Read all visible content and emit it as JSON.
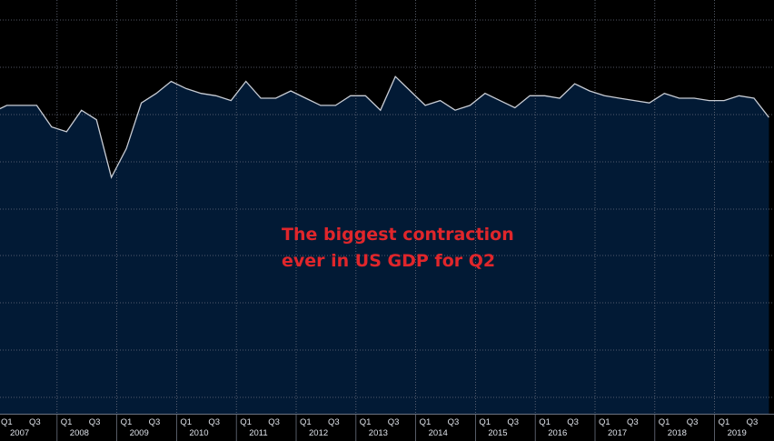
{
  "chart_data": {
    "type": "area",
    "title": "",
    "xlabel": "",
    "ylabel": "",
    "grid": true,
    "annotation": [
      "The biggest contraction",
      "ever in US GDP for Q2"
    ],
    "x_start": "2006 Q4",
    "x_end": "2020 Q1",
    "ylim": [
      -1.0,
      0.3
    ],
    "values": [
      0.5,
      0.8,
      0.8,
      0.8,
      -0.1,
      -0.3,
      0.6,
      0.2,
      -2.2,
      -1.0,
      0.9,
      1.3,
      1.8,
      1.5,
      1.3,
      1.2,
      1.0,
      1.8,
      1.1,
      1.1,
      1.4,
      1.1,
      0.8,
      0.8,
      1.2,
      1.2,
      0.6,
      2.0,
      1.4,
      0.8,
      1.0,
      0.6,
      0.8,
      1.3,
      1.0,
      0.7,
      1.2,
      1.2,
      1.1,
      1.7,
      1.4,
      1.2,
      1.1,
      1.0,
      0.9,
      1.3,
      1.1,
      1.1,
      1.0,
      1.0,
      1.2,
      1.1,
      0.3
    ],
    "x_tick_labels": [
      "Q1",
      "Q3"
    ],
    "years": [
      "2007",
      "2008",
      "2009",
      "2010",
      "2011",
      "2012",
      "2013",
      "2014",
      "2015",
      "2016",
      "2017",
      "2018",
      "2019"
    ],
    "colors": {
      "background": "#000000",
      "area_fill": "#021a35",
      "line": "#c8ccd4",
      "grid": "#6b7280",
      "axis_text": "#dfe3ea",
      "annotation": "#e0262b"
    }
  }
}
